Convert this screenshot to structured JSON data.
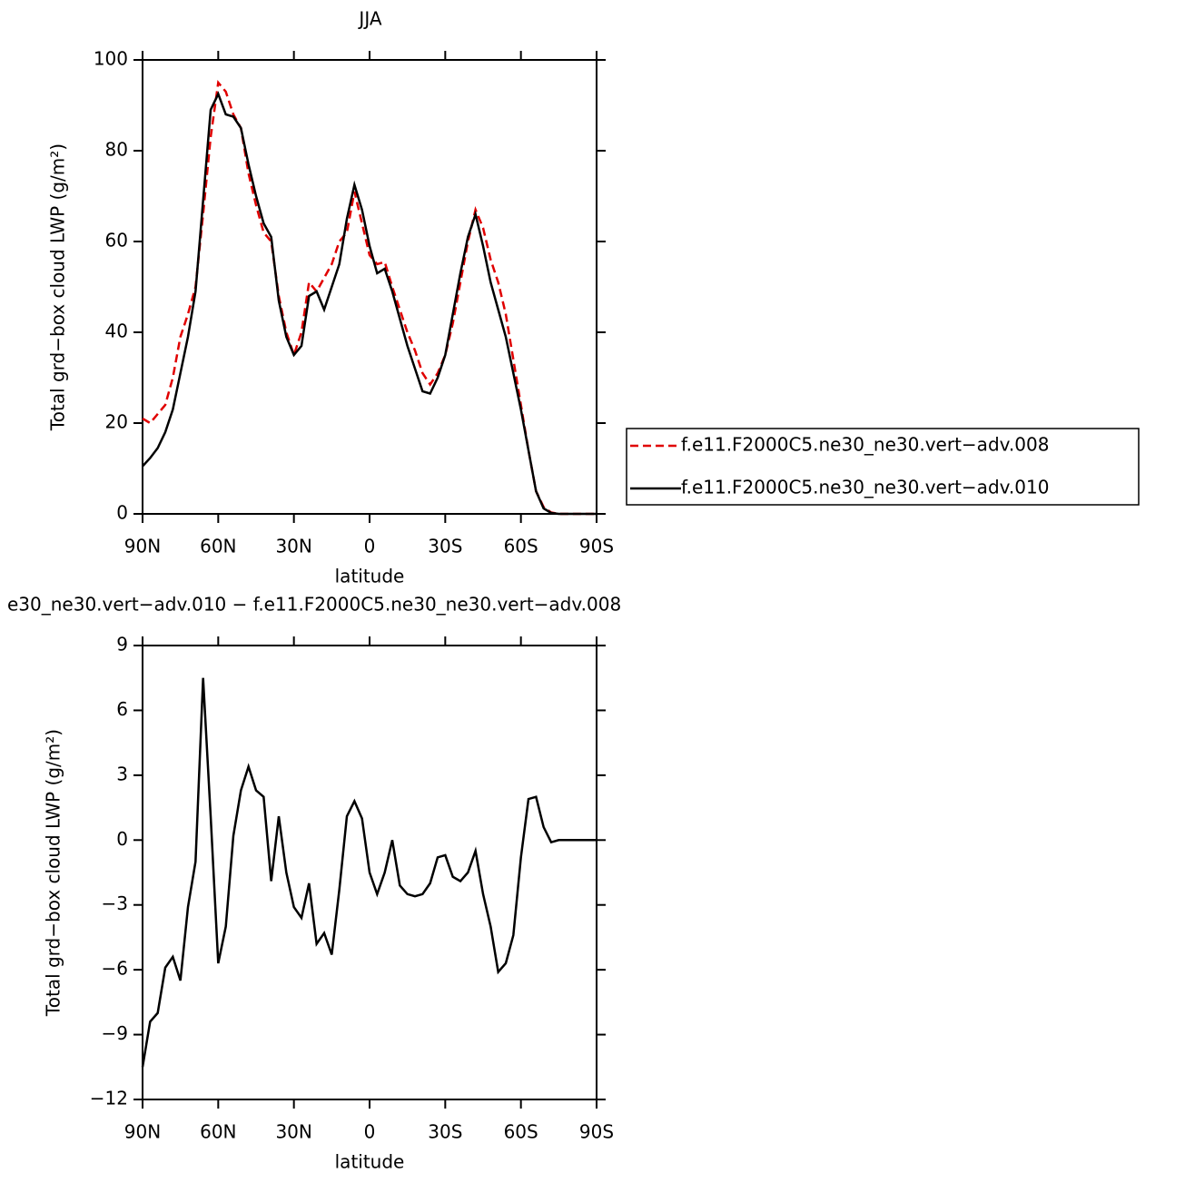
{
  "chart_data": [
    {
      "type": "line",
      "title": "JJA",
      "xlabel": "latitude",
      "ylabel": "Total grd−box cloud LWP (g/m²)",
      "x": [
        90,
        87,
        84,
        81,
        78,
        75,
        72,
        69,
        66,
        63,
        60,
        57,
        54,
        51,
        48,
        45,
        42,
        39,
        36,
        33,
        30,
        27,
        24,
        21,
        18,
        15,
        12,
        9,
        6,
        3,
        0,
        -3,
        -6,
        -9,
        -12,
        -15,
        -18,
        -21,
        -24,
        -27,
        -30,
        -33,
        -36,
        -39,
        -42,
        -45,
        -48,
        -51,
        -54,
        -57,
        -60,
        -63,
        -66,
        -69,
        -72,
        -75,
        -78,
        -81,
        -84,
        -87,
        -90
      ],
      "series": [
        {
          "name": "f.e11.F2000C5.ne30_ne30.vert−adv.008",
          "color": "#e00000",
          "linestyle": "dashed",
          "values": [
            21,
            20,
            22,
            24,
            30,
            39,
            44,
            50,
            66,
            83,
            95,
            93,
            88,
            85,
            75,
            68,
            62,
            60,
            48,
            40,
            35,
            40,
            51,
            49,
            52,
            55,
            60,
            62,
            71,
            64,
            57,
            55,
            55.5,
            50,
            45,
            40,
            36,
            31,
            28.5,
            31,
            35,
            42,
            51,
            60,
            67,
            63,
            56,
            51,
            44,
            34,
            24,
            14,
            5,
            1.5,
            0.3,
            0,
            0,
            0,
            0,
            0,
            0
          ]
        },
        {
          "name": "f.e11.F2000C5.ne30_ne30.vert−adv.010",
          "color": "#000000",
          "linestyle": "solid",
          "values": [
            10.5,
            12.3,
            14.5,
            18,
            23,
            31,
            39,
            49,
            69,
            89,
            92.5,
            88,
            87.5,
            85,
            77,
            70,
            64,
            61,
            47,
            39,
            35,
            37,
            48,
            49,
            45,
            50,
            55,
            65,
            72.5,
            67,
            59,
            53,
            54,
            49,
            43,
            37,
            32,
            27,
            26.5,
            30,
            35,
            44,
            53,
            61,
            66,
            59,
            51,
            45,
            39,
            31,
            23,
            14,
            5,
            1.2,
            0.2,
            0,
            0,
            0,
            0,
            0,
            0
          ]
        }
      ],
      "xlim": [
        90,
        -90
      ],
      "xticks": [
        {
          "value": 90,
          "label": "90N"
        },
        {
          "value": 60,
          "label": "60N"
        },
        {
          "value": 30,
          "label": "30N"
        },
        0,
        {
          "value": -30,
          "label": "30S"
        },
        {
          "value": -60,
          "label": "60S"
        },
        {
          "value": -90,
          "label": "90S"
        }
      ],
      "ylim": [
        0,
        100
      ],
      "yticks": [
        0,
        20,
        40,
        60,
        80,
        100
      ],
      "legend": "right"
    },
    {
      "type": "line",
      "title": "e30_ne30.vert−adv.010 − f.e11.F2000C5.ne30_ne30.vert−adv.008",
      "xlabel": "latitude",
      "ylabel": "Total grd−box cloud LWP (g/m²)",
      "x": [
        90,
        87,
        84,
        81,
        78,
        75,
        72,
        69,
        66,
        63,
        60,
        57,
        54,
        51,
        48,
        45,
        42,
        39,
        36,
        33,
        30,
        27,
        24,
        21,
        18,
        15,
        12,
        9,
        6,
        3,
        0,
        -3,
        -6,
        -9,
        -12,
        -15,
        -18,
        -21,
        -24,
        -27,
        -30,
        -33,
        -36,
        -39,
        -42,
        -45,
        -48,
        -51,
        -54,
        -57,
        -60,
        -63,
        -66,
        -69,
        -72,
        -75,
        -78,
        -81,
        -84,
        -87,
        -90
      ],
      "series": [
        {
          "color": "#000000",
          "linestyle": "solid",
          "values": [
            -10.5,
            -8.4,
            -8,
            -5.9,
            -5.4,
            -6.5,
            -3.1,
            -1,
            7.5,
            1.1,
            -5.7,
            -4,
            0.2,
            2.3,
            3.4,
            2.3,
            2,
            -1.9,
            1.1,
            -1.5,
            -3.1,
            -3.6,
            -2,
            -4.8,
            -4.3,
            -5.3,
            -2.3,
            1.1,
            1.8,
            1,
            -1.5,
            -2.5,
            -1.5,
            0,
            -2.1,
            -2.5,
            -2.6,
            -2.5,
            -2,
            -0.8,
            -0.7,
            -1.7,
            -1.9,
            -1.5,
            -0.5,
            -2.5,
            -4,
            -6.1,
            -5.7,
            -4.4,
            -0.8,
            1.9,
            2,
            0.6,
            -0.1,
            0,
            0,
            0,
            0,
            0,
            0
          ]
        }
      ],
      "xlim": [
        90,
        -90
      ],
      "xticks": [
        {
          "value": 90,
          "label": "90N"
        },
        {
          "value": 60,
          "label": "60N"
        },
        {
          "value": 30,
          "label": "30N"
        },
        0,
        {
          "value": -30,
          "label": "30S"
        },
        {
          "value": -60,
          "label": "60S"
        },
        {
          "value": -90,
          "label": "90S"
        }
      ],
      "ylim": [
        -12,
        9
      ],
      "yticks": [
        {
          "value": -12,
          "label": "−12"
        },
        {
          "value": -9,
          "label": "−9"
        },
        {
          "value": -6,
          "label": "−6"
        },
        {
          "value": -3,
          "label": "−3"
        },
        0,
        3,
        6,
        9
      ]
    }
  ]
}
